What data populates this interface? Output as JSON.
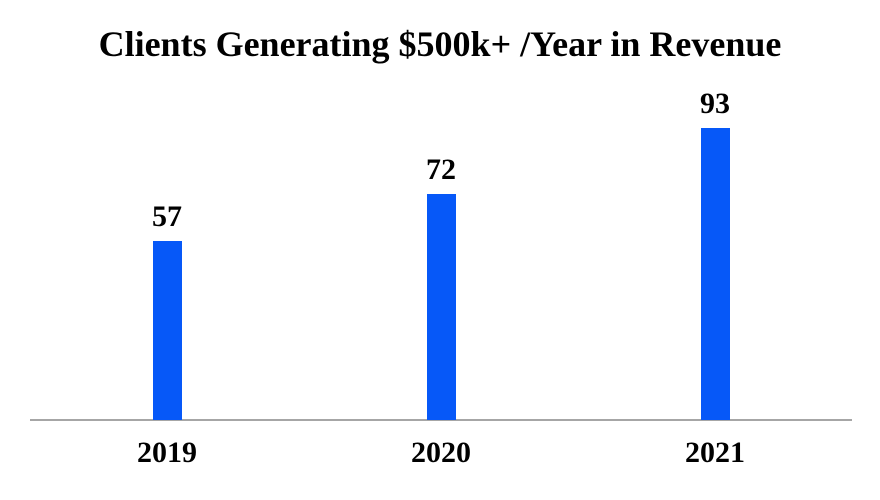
{
  "chart_data": {
    "type": "bar",
    "title": "Clients Generating $500k+ /Year in Revenue",
    "categories": [
      "2019",
      "2020",
      "2021"
    ],
    "values": [
      57,
      72,
      93
    ],
    "xlabel": "",
    "ylabel": "",
    "ylim": [
      0,
      100
    ],
    "grid": false,
    "legend": "none",
    "data_labels": true,
    "colors": {
      "bar": "#0658F8",
      "axis_line": "#A6A6A6",
      "text": "#000000",
      "background": "#FFFFFF"
    }
  }
}
